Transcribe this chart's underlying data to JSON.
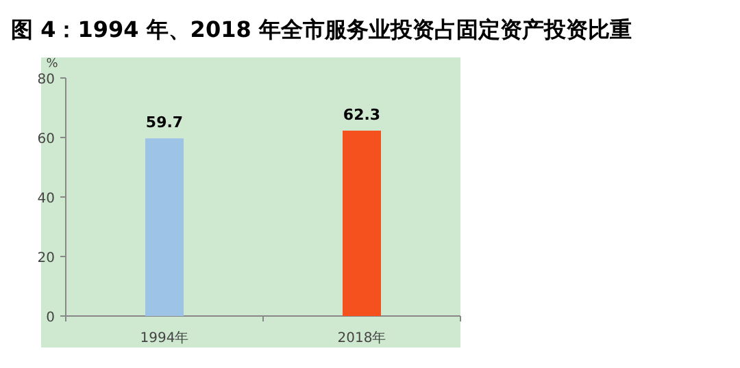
{
  "chart_data": {
    "type": "bar",
    "title": "图 4：1994 年、2018 年全市服务业投资占固定资产投资比重",
    "ylabel": "%",
    "categories": [
      "1994年",
      "2018年"
    ],
    "values": [
      59.7,
      62.3
    ],
    "colors": [
      "#9dc3e6",
      "#f4511e"
    ],
    "data_labels": true,
    "ylim": [
      0,
      80
    ],
    "yticks": [
      0,
      20,
      40,
      60,
      80
    ]
  }
}
